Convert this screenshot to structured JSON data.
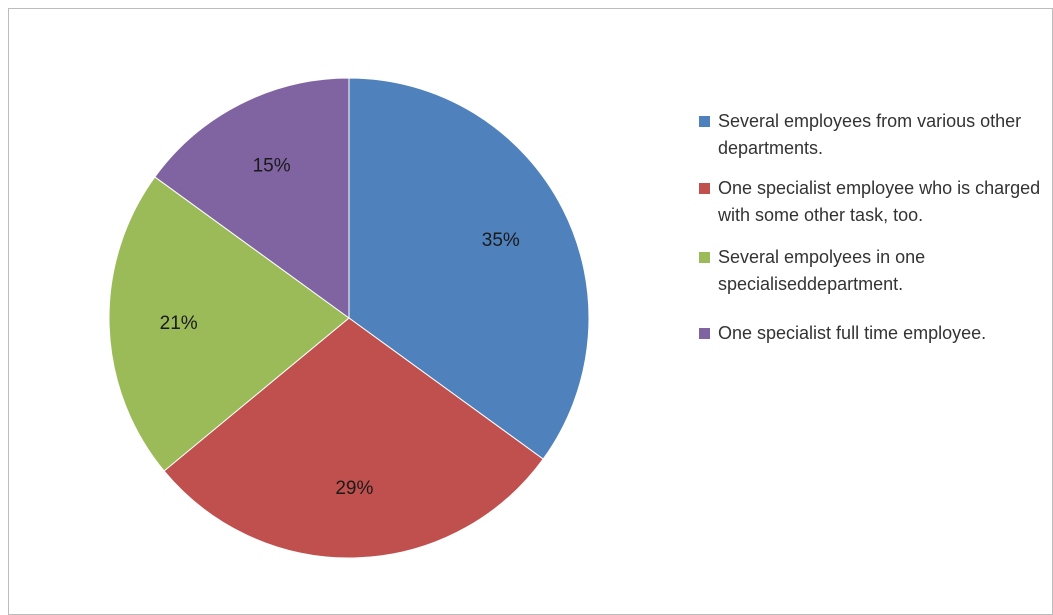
{
  "chart_data": {
    "type": "pie",
    "title": "",
    "slices": [
      {
        "label": "Several employees from various other departments.",
        "value": 35,
        "display": "35%",
        "color": "#4F81BD"
      },
      {
        "label": "One specialist employee who is charged with some other task, too.",
        "value": 29,
        "display": "29%",
        "color": "#C0504D"
      },
      {
        "label": "Several empolyees in one specialiseddepartment.",
        "value": 21,
        "display": "21%",
        "color": "#9BBB59"
      },
      {
        "label": "One specialist full time employee.",
        "value": 15,
        "display": "15%",
        "color": "#8064A2"
      }
    ],
    "legend_position": "right"
  },
  "legend": {
    "items": [
      {
        "label": "Several employees from various other departments.",
        "color": "#4F81BD"
      },
      {
        "label": "One specialist employee who is charged with some other task, too.",
        "color": "#C0504D"
      },
      {
        "label": "Several empolyees in one specialiseddepartment.",
        "color": "#9BBB59"
      },
      {
        "label": "One specialist full time employee.",
        "color": "#8064A2"
      }
    ]
  }
}
